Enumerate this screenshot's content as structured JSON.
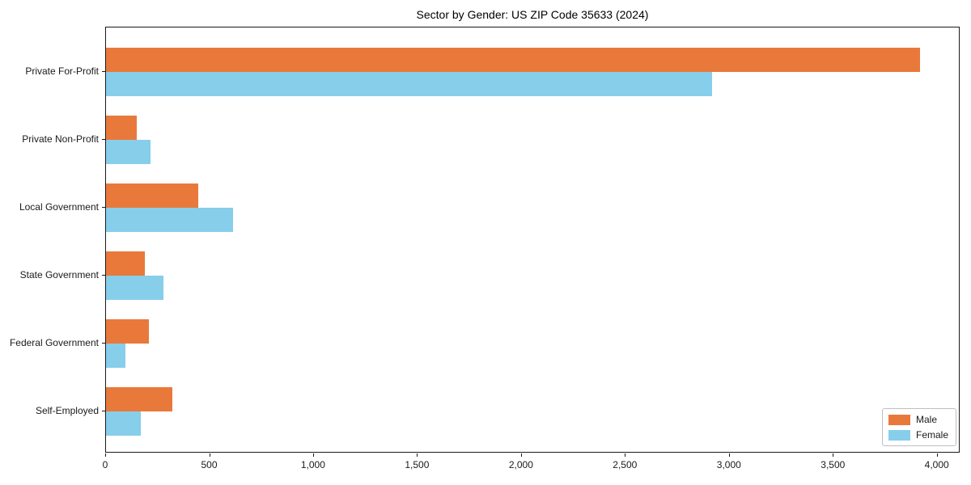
{
  "chart_data": {
    "type": "bar",
    "orientation": "horizontal",
    "title": "Sector by Gender: US ZIP Code 35633 (2024)",
    "xlabel": "",
    "ylabel": "",
    "categories": [
      "Private For-Profit",
      "Private Non-Profit",
      "Local Government",
      "State Government",
      "Federal Government",
      "Self-Employed"
    ],
    "series": [
      {
        "name": "Male",
        "color": "#e8793b",
        "values": [
          3915,
          148,
          445,
          185,
          205,
          320
        ]
      },
      {
        "name": "Female",
        "color": "#87ceeb",
        "values": [
          2915,
          215,
          610,
          275,
          95,
          168
        ]
      }
    ],
    "xticks": [
      {
        "value": 0,
        "label": "0"
      },
      {
        "value": 500,
        "label": "500"
      },
      {
        "value": 1000,
        "label": "1,000"
      },
      {
        "value": 1500,
        "label": "1,500"
      },
      {
        "value": 2000,
        "label": "2,000"
      },
      {
        "value": 2500,
        "label": "2,500"
      },
      {
        "value": 3000,
        "label": "3,000"
      },
      {
        "value": 3500,
        "label": "3,500"
      },
      {
        "value": 4000,
        "label": "4,000"
      }
    ],
    "xlim": [
      0,
      4110
    ],
    "grid": false,
    "legend_position": "lower right",
    "axis_color": "#1a1a1a"
  }
}
